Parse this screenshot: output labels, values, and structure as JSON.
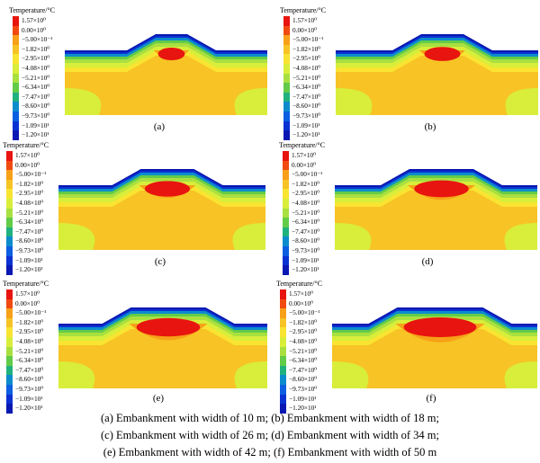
{
  "legend": {
    "title": "Temperature/°C",
    "values": [
      "1.57×10⁰",
      "0.00×10⁰",
      "−5.00×10⁻¹",
      "−1.82×10⁰",
      "−2.95×10⁰",
      "−4.08×10⁰",
      "−5.21×10⁰",
      "−6.34×10⁰",
      "−7.47×10⁰",
      "−8.60×10⁰",
      "−9.73×10⁰",
      "−1.09×10¹",
      "−1.20×10¹"
    ],
    "colors": [
      "#e8140f",
      "#f04a10",
      "#f7a018",
      "#f7c325",
      "#f9e432",
      "#d8ee3a",
      "#a8e040",
      "#62cc48",
      "#20b27e",
      "#0c8ccd",
      "#0b5fe0",
      "#0a32d2",
      "#0918b2"
    ]
  },
  "panels": [
    {
      "label": "(a)",
      "width_m": 10
    },
    {
      "label": "(b)",
      "width_m": 18
    },
    {
      "label": "(c)",
      "width_m": 26
    },
    {
      "label": "(d)",
      "width_m": 34
    },
    {
      "label": "(e)",
      "width_m": 42
    },
    {
      "label": "(f)",
      "width_m": 50
    }
  ],
  "caption": {
    "line1": "(a)  Embankment  with  width  of  10  m; (b) Embankment with width of 18 m;",
    "line2": "(c) Embankment with width of 26 m; (d) Embankment with width of 34 m;",
    "line3": "(e) Embankment  with width of 42 m; (f) Embankment with width of 50 m"
  }
}
